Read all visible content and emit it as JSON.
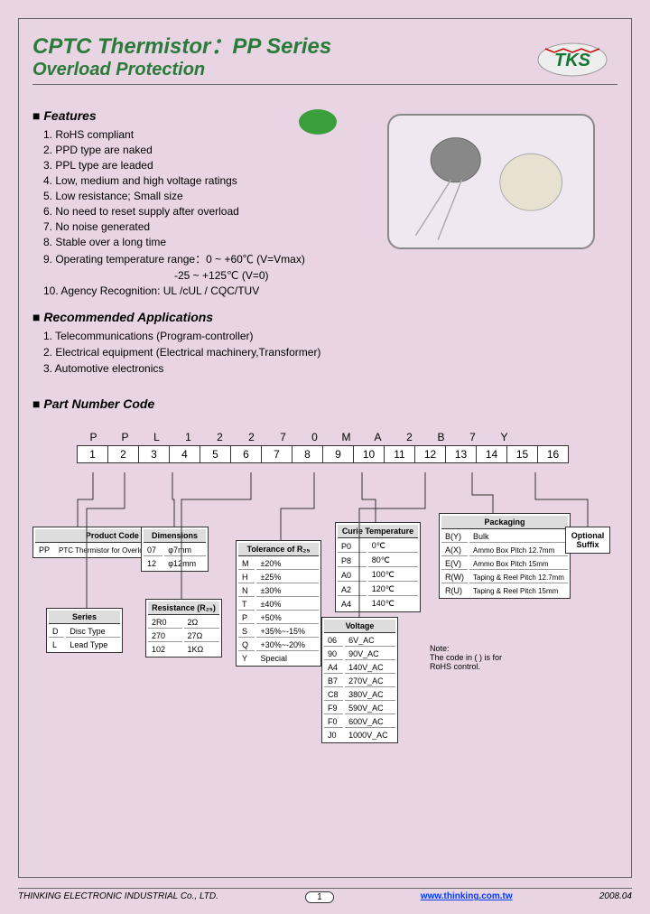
{
  "header": {
    "title_main": "CPTC Thermistor：PP Series",
    "title_sub": "Overload Protection",
    "logo_text": "TKS"
  },
  "features": {
    "heading": "Features",
    "items": [
      "1.  RoHS compliant",
      "2.  PPD type are naked",
      "3.  PPL type are leaded",
      "4.  Low, medium and high voltage ratings",
      "5.  Low resistance; Small size",
      "6.  No need to reset supply after overload",
      "7.  No noise generated",
      "8.  Stable over a long time",
      "9.  Operating temperature range：0 ~ +60℃ (V=Vmax)",
      "-25 ~ +125℃ (V=0)",
      "10. Agency Recognition: UL /cUL / CQC/TUV"
    ]
  },
  "applications": {
    "heading": "Recommended Applications",
    "items": [
      "1. Telecommunications (Program-controller)",
      "2. Electrical equipment (Electrical machinery,Transformer)",
      "3. Automotive electronics"
    ]
  },
  "part_code": {
    "heading": "Part Number Code",
    "letters": [
      "P",
      "P",
      "L",
      "1",
      "2",
      "2",
      "7",
      "0",
      "M",
      "A",
      "2",
      "B",
      "7",
      "Y",
      "",
      ""
    ],
    "indices": [
      "1",
      "2",
      "3",
      "4",
      "5",
      "6",
      "7",
      "8",
      "9",
      "10",
      "11",
      "12",
      "13",
      "14",
      "15",
      "16"
    ]
  },
  "tables": {
    "product": {
      "header": "Product Code",
      "rows": [
        [
          "PP",
          "PTC Thermistor for Overload Protection"
        ]
      ]
    },
    "series": {
      "header": "Series",
      "rows": [
        [
          "D",
          "Disc Type"
        ],
        [
          "L",
          "Lead Type"
        ]
      ]
    },
    "dimensions": {
      "header": "Dimensions",
      "rows": [
        [
          "07",
          "φ7mm"
        ],
        [
          "12",
          "φ12mm"
        ]
      ]
    },
    "resistance": {
      "header": "Resistance (R₂₅)",
      "rows": [
        [
          "2R0",
          "2Ω"
        ],
        [
          "270",
          "27Ω"
        ],
        [
          "102",
          "1KΩ"
        ]
      ]
    },
    "tolerance": {
      "header": "Tolerance of R₂₅",
      "rows": [
        [
          "M",
          "±20%"
        ],
        [
          "H",
          "±25%"
        ],
        [
          "N",
          "±30%"
        ],
        [
          "T",
          "±40%"
        ],
        [
          "P",
          "+50%"
        ],
        [
          "S",
          "+35%~-15%"
        ],
        [
          "Q",
          "+30%~-20%"
        ],
        [
          "Y",
          "Special"
        ]
      ]
    },
    "curie": {
      "header": "Curie Temperature",
      "rows": [
        [
          "P0",
          "0℃"
        ],
        [
          "P8",
          "80℃"
        ],
        [
          "A0",
          "100℃"
        ],
        [
          "A2",
          "120℃"
        ],
        [
          "A4",
          "140℃"
        ]
      ]
    },
    "voltage": {
      "header": "Voltage",
      "rows": [
        [
          "06",
          "6V_AC"
        ],
        [
          "90",
          "90V_AC"
        ],
        [
          "A4",
          "140V_AC"
        ],
        [
          "B7",
          "270V_AC"
        ],
        [
          "C8",
          "380V_AC"
        ],
        [
          "F9",
          "590V_AC"
        ],
        [
          "F0",
          "600V_AC"
        ],
        [
          "J0",
          "1000V_AC"
        ]
      ]
    },
    "packaging": {
      "header": "Packaging",
      "rows": [
        [
          "B(Y)",
          "Bulk"
        ],
        [
          "A(X)",
          "Ammo Box Pitch 12.7mm"
        ],
        [
          "E(V)",
          "Ammo Box Pitch 15mm"
        ],
        [
          "R(W)",
          "Taping & Reel Pitch 12.7mm"
        ],
        [
          "R(U)",
          "Taping & Reel Pitch 15mm"
        ]
      ]
    },
    "suffix": "Optional Suffix",
    "note": {
      "line1": "Note:",
      "line2": "The code in ( ) is for",
      "line3": "RoHS control."
    }
  },
  "footer": {
    "company": "THINKING ELECTRONIC INDUSTRIAL Co., LTD.",
    "page": "1",
    "url": "www.thinking.com.tw",
    "date": "2008.04"
  },
  "colors": {
    "bg": "#e8d4e2",
    "green": "#2a7a3a"
  }
}
